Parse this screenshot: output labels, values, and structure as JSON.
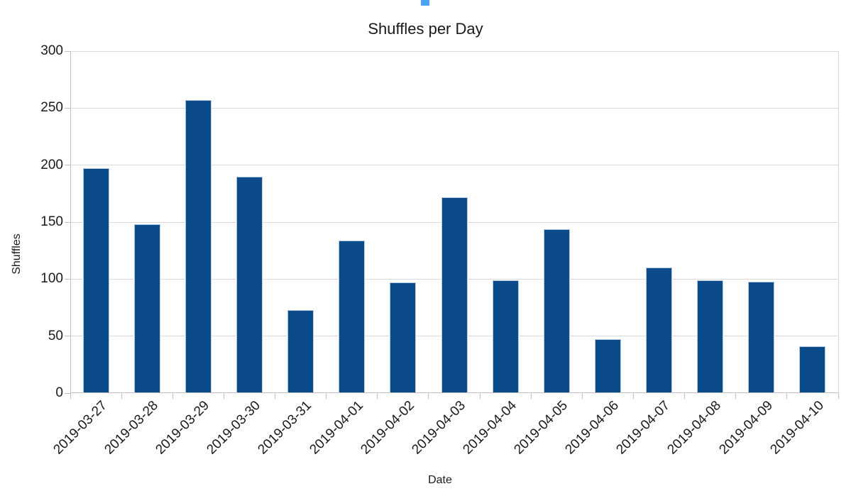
{
  "figure": {
    "background": "#FFFFFF",
    "clipped_widget_color": "#4BA4EF"
  },
  "chart_data": {
    "type": "bar",
    "title": "Shuffles per Day",
    "xlabel": "Date",
    "ylabel": "Shuffles",
    "categories": [
      "2019-03-27",
      "2019-03-28",
      "2019-03-29",
      "2019-03-30",
      "2019-03-31",
      "2019-04-01",
      "2019-04-02",
      "2019-04-03",
      "2019-04-04",
      "2019-04-05",
      "2019-04-06",
      "2019-04-07",
      "2019-04-08",
      "2019-04-09",
      "2019-04-10"
    ],
    "values": [
      197,
      148,
      257,
      190,
      73,
      134,
      97,
      172,
      99,
      144,
      47,
      110,
      99,
      98,
      41
    ],
    "ylim": [
      0,
      300
    ],
    "yticks": [
      0,
      50,
      100,
      150,
      200,
      250,
      300
    ],
    "grid": "horizontal",
    "legend": "none",
    "bar_color": "#0C4B8A",
    "bar_edge_color": "#B7C9DE",
    "gridline_color": "#D9D9D9",
    "axis_color": "#C0C0C0",
    "text_color": "#1A1A1A"
  }
}
